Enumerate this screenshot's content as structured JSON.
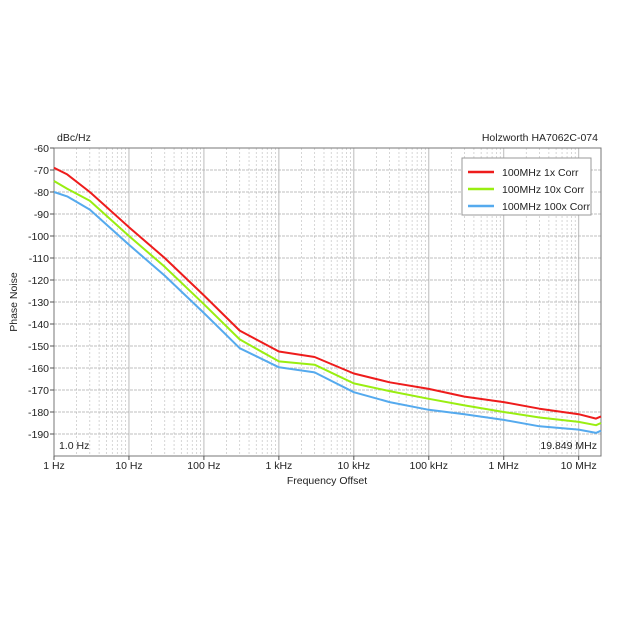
{
  "chart_data": {
    "type": "line",
    "title": "Holzworth HA7062C-074",
    "xlabel": "Frequency Offset",
    "ylabel": "Phase Noise",
    "yunit": "dBc/Hz",
    "x_scale": "log",
    "xlim": [
      1,
      19849000
    ],
    "ylim": [
      -200,
      -60
    ],
    "grid": true,
    "legend_position": "top-right",
    "x_ticks": [
      {
        "value": 1,
        "label": "1 Hz"
      },
      {
        "value": 10,
        "label": "10 Hz"
      },
      {
        "value": 100,
        "label": "100 Hz"
      },
      {
        "value": 1000,
        "label": "1 kHz"
      },
      {
        "value": 10000,
        "label": "10 kHz"
      },
      {
        "value": 100000,
        "label": "100 kHz"
      },
      {
        "value": 1000000,
        "label": "1 MHz"
      },
      {
        "value": 10000000,
        "label": "10 MHz"
      }
    ],
    "y_ticks": [
      -60,
      -70,
      -80,
      -90,
      -100,
      -110,
      -120,
      -130,
      -140,
      -150,
      -160,
      -170,
      -180,
      -190
    ],
    "start_label": "1.0 Hz",
    "stop_label": "19.849 MHz",
    "x": [
      1,
      1.5,
      3,
      10,
      30,
      100,
      300,
      1000,
      3000,
      10000,
      30000,
      100000,
      300000,
      1000000,
      3000000,
      10000000,
      17000000,
      19849000
    ],
    "series": [
      {
        "name": "100MHz 1x Corr",
        "color": "#ee1c1c",
        "values": [
          -69,
          -72,
          -80,
          -96,
          -110,
          -127,
          -143,
          -152.5,
          -155,
          -162.5,
          -166.5,
          -169.5,
          -173,
          -175.5,
          -178.5,
          -181,
          -183,
          -182
        ]
      },
      {
        "name": "100MHz 10x Corr",
        "color": "#99ee11",
        "values": [
          -75,
          -78.5,
          -84,
          -100,
          -114,
          -131,
          -147,
          -157,
          -158.5,
          -167,
          -170.5,
          -174,
          -177,
          -180,
          -182.5,
          -184.5,
          -186,
          -185
        ]
      },
      {
        "name": "100MHz 100x Corr",
        "color": "#55aaee",
        "values": [
          -80,
          -82,
          -88,
          -104,
          -118,
          -135,
          -151,
          -159.7,
          -162,
          -171,
          -175.5,
          -179,
          -181,
          -183.6,
          -186.5,
          -188,
          -189.5,
          -188.5
        ]
      }
    ]
  }
}
